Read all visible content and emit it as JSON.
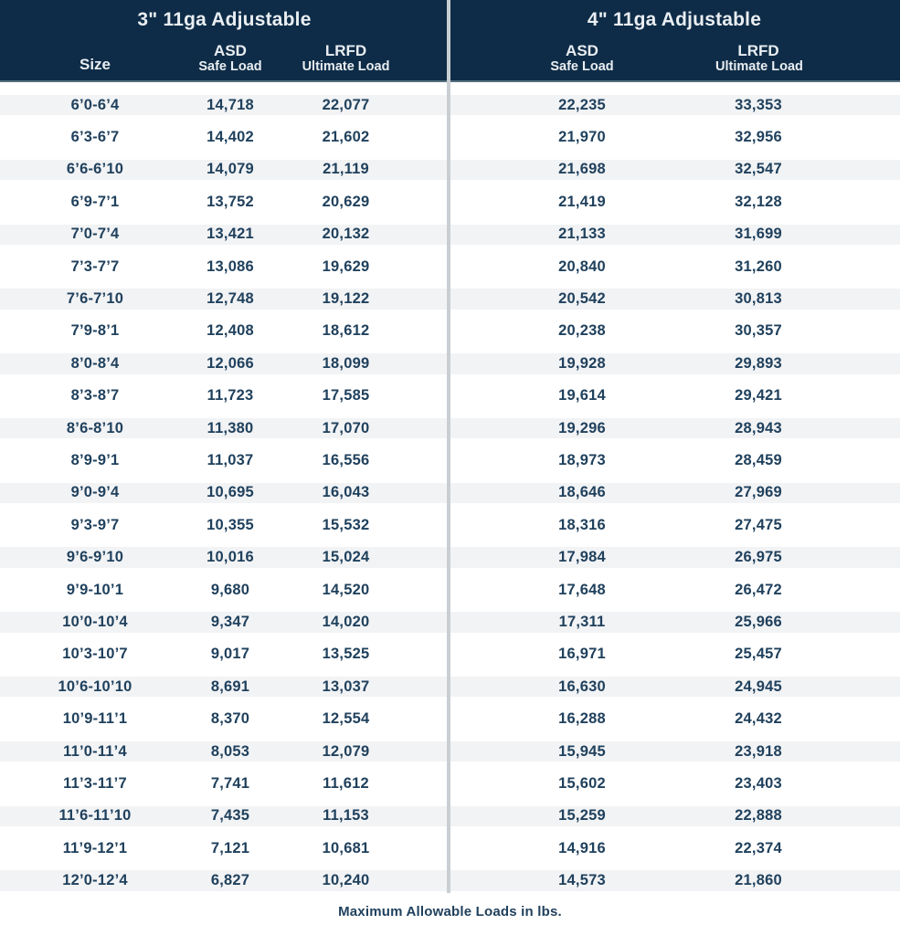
{
  "colors": {
    "header_bg": "#0e2c47",
    "header_text": "#e9eef2",
    "body_text": "#20415d",
    "stripe": "#f2f3f5",
    "divider": "#c9ced3"
  },
  "left_table": {
    "title": "3\" 11ga Adjustable",
    "headers": {
      "size": "Size",
      "asd_top": "ASD",
      "asd_bottom": "Safe Load",
      "lrfd_top": "LRFD",
      "lrfd_bottom": "Ultimate Load"
    }
  },
  "right_table": {
    "title": "4\" 11ga Adjustable",
    "headers": {
      "asd_top": "ASD",
      "asd_bottom": "Safe Load",
      "lrfd_top": "LRFD",
      "lrfd_bottom": "Ultimate Load"
    }
  },
  "footer_note": "Maximum Allowable Loads in lbs.",
  "rows": [
    {
      "size": "6’0-6’4",
      "asd_3in": "14,718",
      "lrfd_3in": "22,077",
      "asd_4in": "22,235",
      "lrfd_4in": "33,353"
    },
    {
      "size": "6’3-6’7",
      "asd_3in": "14,402",
      "lrfd_3in": "21,602",
      "asd_4in": "21,970",
      "lrfd_4in": "32,956"
    },
    {
      "size": "6’6-6’10",
      "asd_3in": "14,079",
      "lrfd_3in": "21,119",
      "asd_4in": "21,698",
      "lrfd_4in": "32,547"
    },
    {
      "size": "6’9-7’1",
      "asd_3in": "13,752",
      "lrfd_3in": "20,629",
      "asd_4in": "21,419",
      "lrfd_4in": "32,128"
    },
    {
      "size": "7’0-7’4",
      "asd_3in": "13,421",
      "lrfd_3in": "20,132",
      "asd_4in": "21,133",
      "lrfd_4in": "31,699"
    },
    {
      "size": "7’3-7’7",
      "asd_3in": "13,086",
      "lrfd_3in": "19,629",
      "asd_4in": "20,840",
      "lrfd_4in": "31,260"
    },
    {
      "size": "7’6-7’10",
      "asd_3in": "12,748",
      "lrfd_3in": "19,122",
      "asd_4in": "20,542",
      "lrfd_4in": "30,813"
    },
    {
      "size": "7’9-8’1",
      "asd_3in": "12,408",
      "lrfd_3in": "18,612",
      "asd_4in": "20,238",
      "lrfd_4in": "30,357"
    },
    {
      "size": "8’0-8’4",
      "asd_3in": "12,066",
      "lrfd_3in": "18,099",
      "asd_4in": "19,928",
      "lrfd_4in": "29,893"
    },
    {
      "size": "8’3-8’7",
      "asd_3in": "11,723",
      "lrfd_3in": "17,585",
      "asd_4in": "19,614",
      "lrfd_4in": "29,421"
    },
    {
      "size": "8’6-8’10",
      "asd_3in": "11,380",
      "lrfd_3in": "17,070",
      "asd_4in": "19,296",
      "lrfd_4in": "28,943"
    },
    {
      "size": "8’9-9’1",
      "asd_3in": "11,037",
      "lrfd_3in": "16,556",
      "asd_4in": "18,973",
      "lrfd_4in": "28,459"
    },
    {
      "size": "9’0-9’4",
      "asd_3in": "10,695",
      "lrfd_3in": "16,043",
      "asd_4in": "18,646",
      "lrfd_4in": "27,969"
    },
    {
      "size": "9’3-9’7",
      "asd_3in": "10,355",
      "lrfd_3in": "15,532",
      "asd_4in": "18,316",
      "lrfd_4in": "27,475"
    },
    {
      "size": "9’6-9’10",
      "asd_3in": "10,016",
      "lrfd_3in": "15,024",
      "asd_4in": "17,984",
      "lrfd_4in": "26,975"
    },
    {
      "size": "9’9-10’1",
      "asd_3in": "9,680",
      "lrfd_3in": "14,520",
      "asd_4in": "17,648",
      "lrfd_4in": "26,472"
    },
    {
      "size": "10’0-10’4",
      "asd_3in": "9,347",
      "lrfd_3in": "14,020",
      "asd_4in": "17,311",
      "lrfd_4in": "25,966"
    },
    {
      "size": "10’3-10’7",
      "asd_3in": "9,017",
      "lrfd_3in": "13,525",
      "asd_4in": "16,971",
      "lrfd_4in": "25,457"
    },
    {
      "size": "10’6-10’10",
      "asd_3in": "8,691",
      "lrfd_3in": "13,037",
      "asd_4in": "16,630",
      "lrfd_4in": "24,945"
    },
    {
      "size": "10’9-11’1",
      "asd_3in": "8,370",
      "lrfd_3in": "12,554",
      "asd_4in": "16,288",
      "lrfd_4in": "24,432"
    },
    {
      "size": "11’0-11’4",
      "asd_3in": "8,053",
      "lrfd_3in": "12,079",
      "asd_4in": "15,945",
      "lrfd_4in": "23,918"
    },
    {
      "size": "11’3-11’7",
      "asd_3in": "7,741",
      "lrfd_3in": "11,612",
      "asd_4in": "15,602",
      "lrfd_4in": "23,403"
    },
    {
      "size": "11’6-11’10",
      "asd_3in": "7,435",
      "lrfd_3in": "11,153",
      "asd_4in": "15,259",
      "lrfd_4in": "22,888"
    },
    {
      "size": "11’9-12’1",
      "asd_3in": "7,121",
      "lrfd_3in": "10,681",
      "asd_4in": "14,916",
      "lrfd_4in": "22,374"
    },
    {
      "size": "12’0-12’4",
      "asd_3in": "6,827",
      "lrfd_3in": "10,240",
      "asd_4in": "14,573",
      "lrfd_4in": "21,860"
    }
  ]
}
